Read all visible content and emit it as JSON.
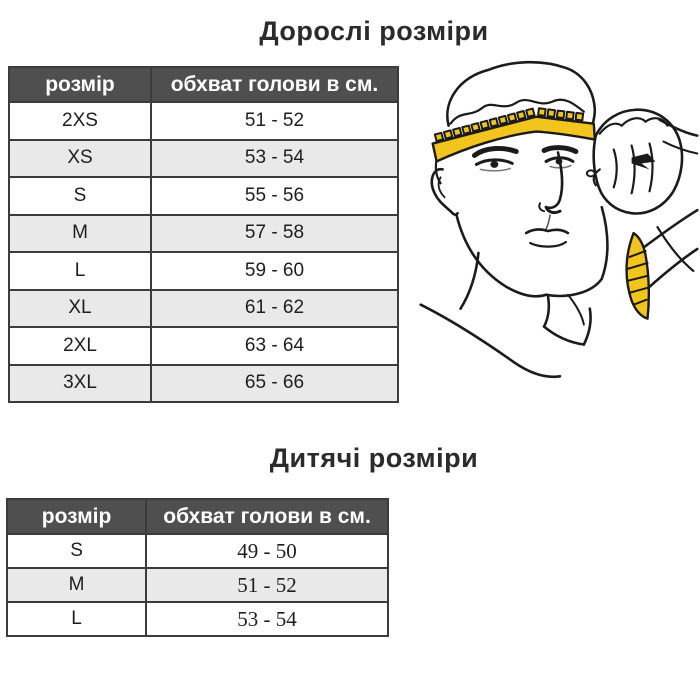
{
  "adult": {
    "title": "Дорослі розміри",
    "table": {
      "headers": [
        "розмір",
        "обхват голови в см."
      ],
      "rows": [
        {
          "size": "2XS",
          "range": "51 - 52"
        },
        {
          "size": "XS",
          "range": "53 - 54"
        },
        {
          "size": "S",
          "range": "55 - 56"
        },
        {
          "size": "M",
          "range": "57 - 58"
        },
        {
          "size": "L",
          "range": "59 - 60"
        },
        {
          "size": "XL",
          "range": "61 - 62"
        },
        {
          "size": "2XL",
          "range": "63 - 64"
        },
        {
          "size": "3XL",
          "range": "65 - 66"
        }
      ]
    }
  },
  "kids": {
    "title": "Дитячі розміри",
    "table": {
      "headers": [
        "розмір",
        "обхват голови в см."
      ],
      "rows": [
        {
          "size": "S",
          "range": "49 - 50"
        },
        {
          "size": "M",
          "range": "51 - 52"
        },
        {
          "size": "L",
          "range": "53 - 54"
        }
      ]
    }
  },
  "illustration": {
    "name": "head-measurement-illustration",
    "alt": "Чоловік вимірює обхват голови сантиметровою стрічкою",
    "tape_color": "#F2C41E"
  },
  "colors": {
    "header_bg": "#4f4f4f",
    "header_text": "#ffffff",
    "row_alt_bg": "#e9e9e9",
    "border": "#3c3c3c",
    "title_text": "#2b2b2b",
    "line_art": "#1b1b1b"
  }
}
